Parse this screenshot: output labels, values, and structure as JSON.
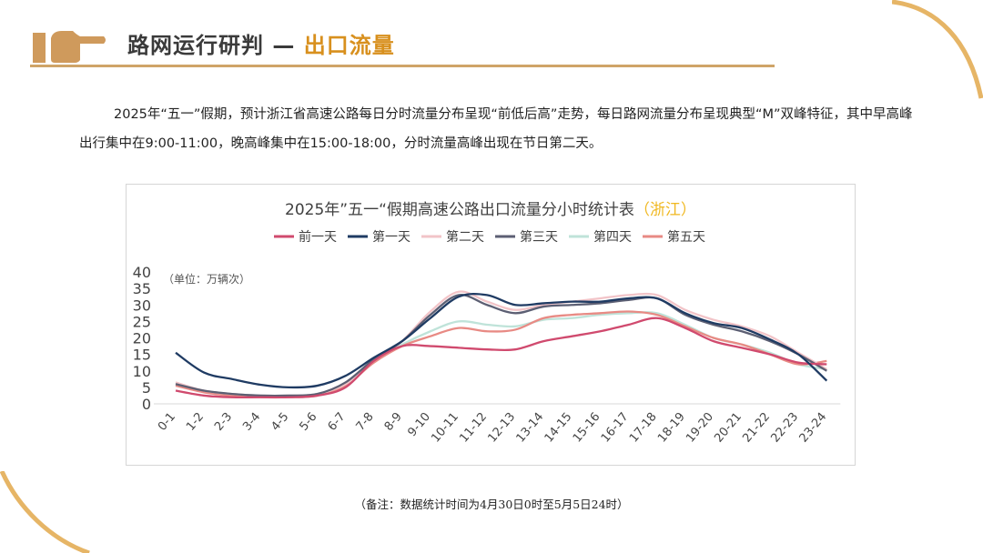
{
  "header": {
    "title_main": "路网运行研判 — ",
    "title_accent": "出口流量",
    "icon": "pointing-hand-icon",
    "accent_color": "#d8901e"
  },
  "paragraph": "2025年“五一”假期，预计浙江省高速公路每日分时流量分布呈现“前低后高”走势，每日路网流量分布呈现典型“M”双峰特征，其中早高峰出行集中在9:00-11:00，晚高峰集中在15:00-18:00，分时流量高峰出现在节日第二天。",
  "footnote": "（备注：数据统计时间为4月30日0时至5月5日24时）",
  "chart_data": {
    "type": "line",
    "title": "2025年”五一“假期高速公路出口流量分小时统计表",
    "title_highlight": "（浙江）",
    "unit_label": "（单位：万辆次）",
    "ylim": [
      0,
      40
    ],
    "yticks": [
      0,
      5,
      10,
      15,
      20,
      25,
      30,
      35,
      40
    ],
    "grid": false,
    "legend_position": "top",
    "categories": [
      "0-1",
      "1-2",
      "2-3",
      "3-4",
      "4-5",
      "5-6",
      "6-7",
      "7-8",
      "8-9",
      "9-10",
      "10-11",
      "11-12",
      "12-13",
      "13-14",
      "14-15",
      "15-16",
      "16-17",
      "17-18",
      "18-19",
      "19-20",
      "20-21",
      "21-22",
      "22-23",
      "23-24"
    ],
    "series": [
      {
        "name": "前一天",
        "color": "#d04a6e",
        "values": [
          4,
          2.5,
          2,
          2,
          2,
          2.5,
          5,
          13,
          17.5,
          17.5,
          17,
          16.5,
          16.5,
          19,
          20.5,
          22,
          24,
          26,
          23,
          19,
          17,
          15,
          12.5,
          12
        ]
      },
      {
        "name": "第一天",
        "color": "#1f3b63",
        "values": [
          15.5,
          9.5,
          7.5,
          5.8,
          5,
          5.5,
          8.5,
          14,
          19,
          26,
          32.5,
          33,
          30,
          30.5,
          31,
          31,
          32,
          32,
          27.5,
          24.5,
          23,
          19.5,
          15,
          7
        ]
      },
      {
        "name": "第二天",
        "color": "#f2c4c8",
        "values": [
          6.5,
          4,
          3,
          2.5,
          2.5,
          3,
          6,
          13,
          19,
          28,
          34,
          31,
          28.5,
          30,
          31,
          32,
          33,
          33,
          28.5,
          25.5,
          23.5,
          20.5,
          15.5,
          10.5
        ]
      },
      {
        "name": "第三天",
        "color": "#5c5f73",
        "values": [
          6,
          4,
          3,
          2.5,
          2.5,
          3,
          6.5,
          13.5,
          19,
          27,
          33,
          30,
          27.5,
          29.5,
          30,
          30.5,
          31.5,
          32,
          27,
          24,
          22,
          19,
          15,
          10
        ]
      },
      {
        "name": "第四天",
        "color": "#bfe3d9",
        "values": [
          6,
          4,
          3,
          2.5,
          2.5,
          3,
          6,
          13,
          18,
          22,
          25,
          24,
          23.5,
          25.5,
          26,
          27,
          27.5,
          27.5,
          24,
          20,
          18,
          15.5,
          12,
          10.5
        ]
      },
      {
        "name": "第五天",
        "color": "#e88a84",
        "values": [
          5.5,
          3.5,
          2.5,
          2,
          2,
          2.5,
          5.5,
          12.5,
          17.5,
          20.5,
          23,
          22,
          22.5,
          26,
          27,
          27.5,
          28,
          27,
          23.5,
          20,
          18,
          15,
          12,
          13
        ]
      }
    ]
  }
}
